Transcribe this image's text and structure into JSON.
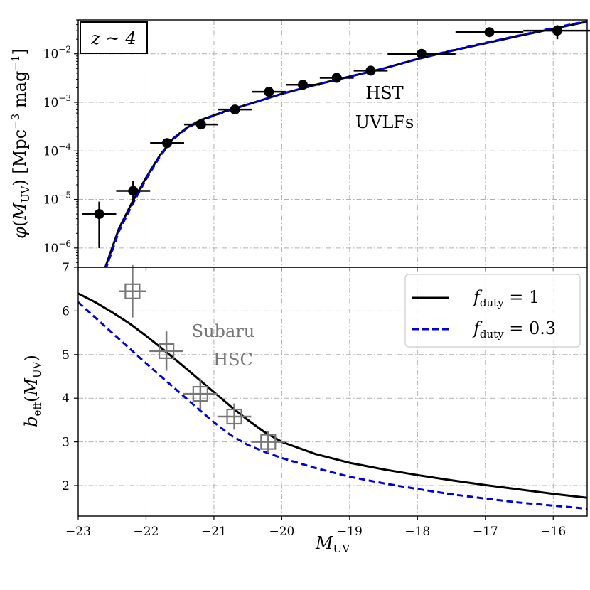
{
  "chart_data": [
    {
      "panel": "top",
      "type": "line",
      "y_scale": "log",
      "title": "",
      "redshift_label": "z ~ 4",
      "annotation": [
        "HST",
        "UVLFs"
      ],
      "ylabel": "φ(M_UV) [Mpc⁻³ mag⁻¹]",
      "xlim": [
        -23,
        -15.5
      ],
      "ylim": [
        4e-07,
        0.05
      ],
      "y_ticks": [
        {
          "value": 1e-06,
          "mantissa": "10",
          "exp": "−6"
        },
        {
          "value": 1e-05,
          "mantissa": "10",
          "exp": "−5"
        },
        {
          "value": 0.0001,
          "mantissa": "10",
          "exp": "−4"
        },
        {
          "value": 0.001,
          "mantissa": "10",
          "exp": "−3"
        },
        {
          "value": 0.01,
          "mantissa": "10",
          "exp": "−2"
        }
      ],
      "series": [
        {
          "name": "f_duty = 1",
          "color": "#000000",
          "dash": "solid",
          "x": [
            -22.6,
            -22.4,
            -22.2,
            -22.0,
            -21.8,
            -21.6,
            -21.4,
            -21.2,
            -20.8,
            -20.4,
            -20.0,
            -19.5,
            -19.0,
            -18.5,
            -18.0,
            -17.5,
            -17.0,
            -16.5,
            -16.0,
            -15.5
          ],
          "y": [
            4e-07,
            2.5e-06,
            9e-06,
            2.8e-05,
            8e-05,
            0.00018,
            0.0003,
            0.00043,
            0.00068,
            0.001,
            0.0015,
            0.0023,
            0.0034,
            0.005,
            0.0078,
            0.0115,
            0.0165,
            0.0235,
            0.033,
            0.046
          ]
        },
        {
          "name": "f_duty = 0.3",
          "color": "#0000dd",
          "dash": "dashed",
          "x": [
            -22.6,
            -22.4,
            -22.2,
            -22.0,
            -21.8,
            -21.6,
            -21.4,
            -21.2,
            -20.8,
            -20.4,
            -20.0,
            -19.5,
            -19.0,
            -18.5,
            -18.0,
            -17.5,
            -17.0,
            -16.5,
            -16.0,
            -15.5
          ],
          "y": [
            3.5e-07,
            2.2e-06,
            8e-06,
            2.6e-05,
            7.6e-05,
            0.000175,
            0.00029,
            0.00042,
            0.00067,
            0.001,
            0.0015,
            0.0023,
            0.0034,
            0.005,
            0.0079,
            0.0117,
            0.0168,
            0.024,
            0.034,
            0.047
          ]
        }
      ],
      "points": {
        "name": "HST UVLFs",
        "color": "#000000",
        "x": [
          -22.69,
          -22.19,
          -21.69,
          -21.19,
          -20.69,
          -20.19,
          -19.69,
          -19.19,
          -18.69,
          -17.94,
          -16.94,
          -15.94
        ],
        "y": [
          5e-06,
          1.5e-05,
          0.000145,
          0.00035,
          0.00071,
          0.00165,
          0.0023,
          0.0032,
          0.0045,
          0.01,
          0.028,
          0.03
        ],
        "xerr": [
          0.25,
          0.25,
          0.25,
          0.25,
          0.25,
          0.25,
          0.25,
          0.25,
          0.25,
          0.5,
          0.5,
          0.5
        ],
        "ylo": [
          1e-06,
          8e-06,
          0.000115,
          0.0003,
          0.00062,
          0.00145,
          0.002,
          0.0028,
          0.0038,
          0.0083,
          0.023,
          0.02
        ],
        "yhi": [
          9e-06,
          2.4e-05,
          0.00018,
          0.0004,
          0.00081,
          0.00185,
          0.0026,
          0.0036,
          0.0053,
          0.012,
          0.033,
          0.039
        ]
      }
    },
    {
      "panel": "bottom",
      "type": "line",
      "y_scale": "linear",
      "annotation": [
        "Subaru",
        "HSC"
      ],
      "ylabel": "b_eff(M_UV)",
      "xlabel": "M_UV",
      "xlim": [
        -23,
        -15.5
      ],
      "ylim": [
        1.3,
        7
      ],
      "x_ticks": [
        "−23",
        "−22",
        "−21",
        "−20",
        "−19",
        "−18",
        "−17",
        "−16"
      ],
      "x_tick_values": [
        -23,
        -22,
        -21,
        -20,
        -19,
        -18,
        -17,
        -16
      ],
      "y_ticks": [
        "2",
        "3",
        "4",
        "5",
        "6",
        "7"
      ],
      "y_tick_values": [
        2,
        3,
        4,
        5,
        6,
        7
      ],
      "legend_position": "top-right",
      "series": [
        {
          "name": "f_duty = 1",
          "legend_label": "f",
          "legend_sub": "duty",
          "legend_value": " = 1",
          "color": "#000000",
          "dash": "solid",
          "x": [
            -23.0,
            -22.75,
            -22.5,
            -22.25,
            -22.0,
            -21.75,
            -21.5,
            -21.25,
            -21.0,
            -20.75,
            -20.5,
            -20.25,
            -20.0,
            -19.5,
            -19.0,
            -18.5,
            -18.0,
            -17.5,
            -17.0,
            -16.5,
            -16.0,
            -15.5
          ],
          "y": [
            6.4,
            6.2,
            5.97,
            5.72,
            5.43,
            5.12,
            4.8,
            4.47,
            4.14,
            3.81,
            3.5,
            3.22,
            3.0,
            2.72,
            2.52,
            2.37,
            2.24,
            2.12,
            2.01,
            1.91,
            1.81,
            1.72
          ]
        },
        {
          "name": "f_duty = 0.3",
          "legend_label": "f",
          "legend_sub": "duty",
          "legend_value": " = 0.3",
          "color": "#0000dd",
          "dash": "dashed",
          "x": [
            -23.0,
            -22.75,
            -22.5,
            -22.25,
            -22.0,
            -21.75,
            -21.5,
            -21.25,
            -21.0,
            -20.75,
            -20.5,
            -20.25,
            -20.0,
            -19.5,
            -19.0,
            -18.5,
            -18.0,
            -17.5,
            -17.0,
            -16.5,
            -16.0,
            -15.5
          ],
          "y": [
            6.2,
            5.85,
            5.5,
            5.15,
            4.8,
            4.46,
            4.12,
            3.78,
            3.45,
            3.15,
            2.93,
            2.77,
            2.63,
            2.4,
            2.2,
            2.05,
            1.92,
            1.8,
            1.7,
            1.61,
            1.54,
            1.47
          ]
        }
      ],
      "points": {
        "name": "Subaru HSC",
        "color": "#777777",
        "x": [
          -22.2,
          -21.7,
          -21.2,
          -20.7,
          -20.2
        ],
        "y": [
          6.45,
          5.08,
          4.1,
          3.58,
          3.0
        ],
        "xerr": [
          0.2,
          0.25,
          0.25,
          0.25,
          0.25
        ],
        "yerr": [
          0.6,
          0.45,
          0.35,
          0.3,
          0.25
        ]
      }
    }
  ]
}
